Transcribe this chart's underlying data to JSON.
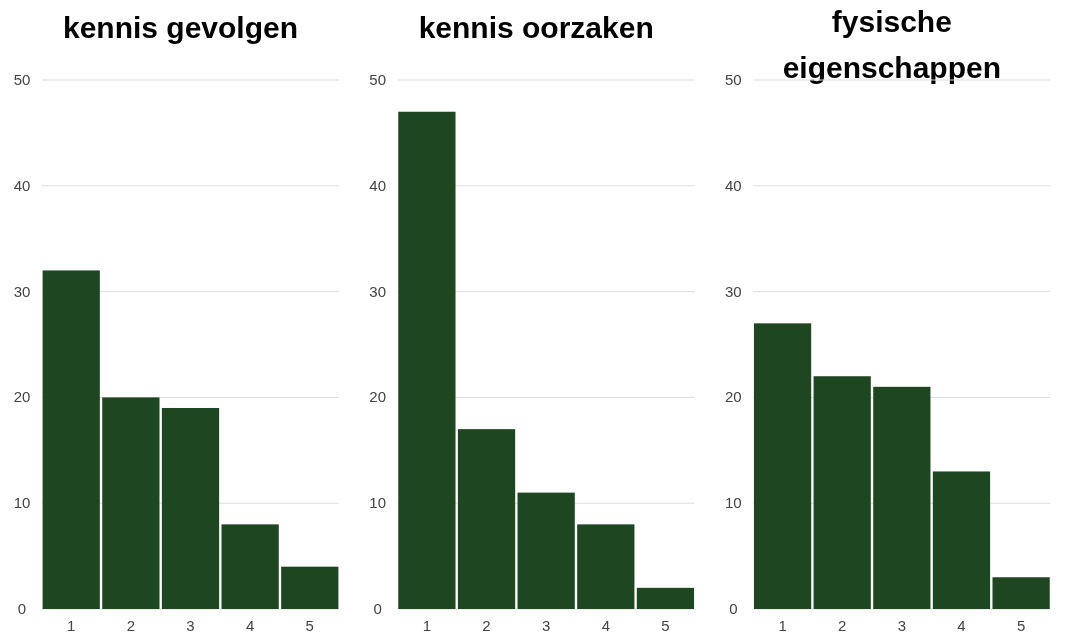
{
  "chart_data": [
    {
      "type": "bar",
      "title": "kennis gevolgen",
      "categories": [
        "1",
        "2",
        "3",
        "4",
        "5"
      ],
      "values": [
        32,
        20,
        19,
        8,
        4
      ],
      "color": "#1e4620",
      "ylim": [
        0,
        50
      ],
      "yticks": [
        0,
        10,
        20,
        30,
        40,
        50
      ],
      "grid": "y"
    },
    {
      "type": "bar",
      "title": "kennis oorzaken",
      "categories": [
        "1",
        "2",
        "3",
        "4",
        "5"
      ],
      "values": [
        47,
        17,
        11,
        8,
        2
      ],
      "color": "#1e4620",
      "ylim": [
        0,
        50
      ],
      "yticks": [
        0,
        10,
        20,
        30,
        40,
        50
      ],
      "grid": "y"
    },
    {
      "type": "bar",
      "title": "fysische eigenschappen",
      "categories": [
        "1",
        "2",
        "3",
        "4",
        "5"
      ],
      "values": [
        27,
        22,
        21,
        13,
        3
      ],
      "color": "#1e4620",
      "ylim": [
        0,
        50
      ],
      "yticks": [
        0,
        10,
        20,
        30,
        40,
        50
      ],
      "grid": "y"
    }
  ]
}
